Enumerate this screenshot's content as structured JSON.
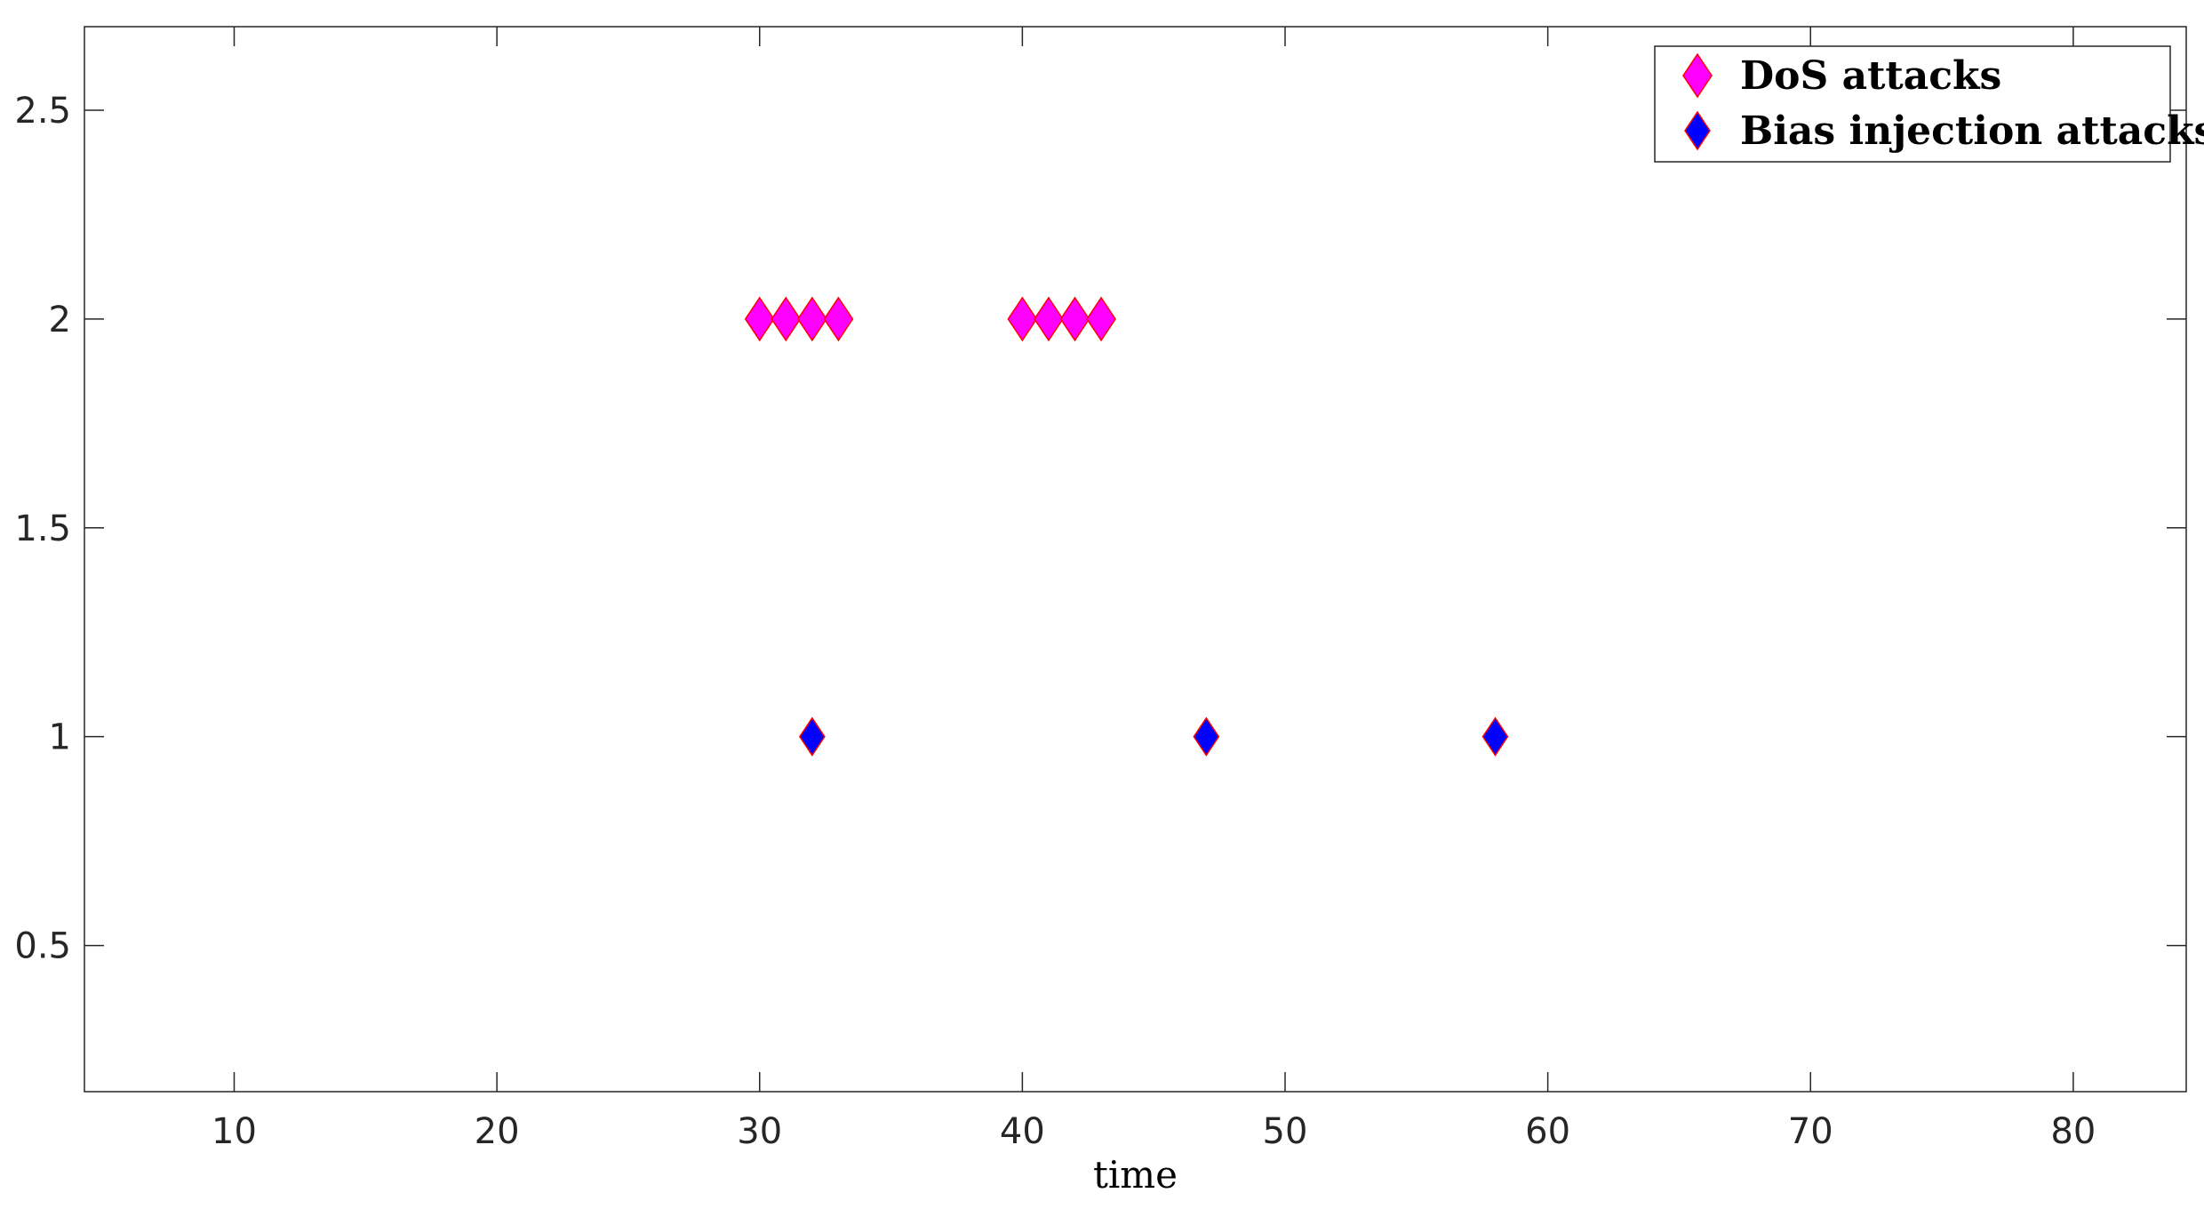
{
  "chart_data": {
    "type": "scatter",
    "title": "",
    "xlabel": "time",
    "ylabel": "",
    "xlim": [
      4.3,
      84.3
    ],
    "ylim": [
      0.15,
      2.7
    ],
    "xticks": [
      10,
      20,
      30,
      40,
      50,
      60,
      70,
      80
    ],
    "yticks": [
      0.5,
      1,
      1.5,
      2,
      2.5
    ],
    "xtick_labels": [
      "10",
      "20",
      "30",
      "40",
      "50",
      "60",
      "70",
      "80"
    ],
    "ytick_labels": [
      "0.5",
      "1",
      "1.5",
      "2",
      "2.5"
    ],
    "grid": false,
    "legend_position": "top-right",
    "series": [
      {
        "name": "DoS attacks",
        "marker": "diamond",
        "fill": "#ff00ff",
        "edge": "#ff0000",
        "marker_size": "large",
        "points": [
          {
            "x": 30,
            "y": 2
          },
          {
            "x": 31,
            "y": 2
          },
          {
            "x": 32,
            "y": 2
          },
          {
            "x": 33,
            "y": 2
          },
          {
            "x": 40,
            "y": 2
          },
          {
            "x": 41,
            "y": 2
          },
          {
            "x": 42,
            "y": 2
          },
          {
            "x": 43,
            "y": 2
          }
        ]
      },
      {
        "name": "Bias injection attacks",
        "marker": "diamond",
        "fill": "#0000ff",
        "edge": "#ff0000",
        "marker_size": "medium",
        "points": [
          {
            "x": 32,
            "y": 1
          },
          {
            "x": 47,
            "y": 1
          },
          {
            "x": 58,
            "y": 1
          }
        ]
      }
    ]
  }
}
